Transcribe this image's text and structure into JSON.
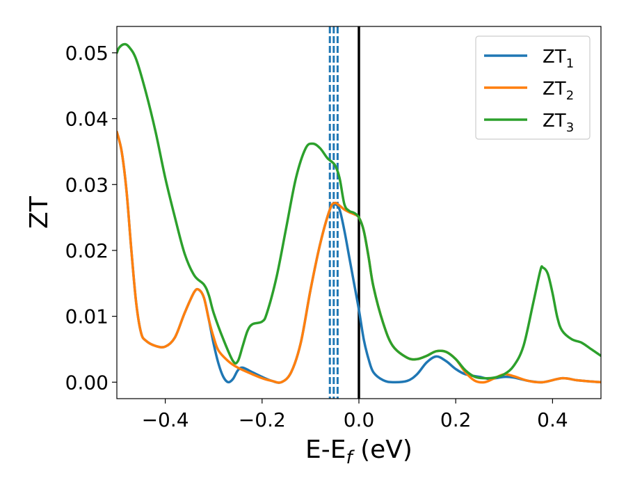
{
  "chart_data": {
    "type": "line",
    "title": "",
    "xlabel": {
      "main": "E-E",
      "sub": "f",
      "suffix": " (eV)"
    },
    "ylabel": "ZT",
    "xlim": [
      -0.5,
      0.5
    ],
    "ylim": [
      -0.0025,
      0.054
    ],
    "x_ticks": [
      -0.4,
      -0.2,
      0.0,
      0.2,
      0.4
    ],
    "x_tick_labels": [
      "−0.4",
      "−0.2",
      "0.0",
      "0.2",
      "0.4"
    ],
    "y_ticks": [
      0.0,
      0.01,
      0.02,
      0.03,
      0.04,
      0.05
    ],
    "y_tick_labels": [
      "0.00",
      "0.01",
      "0.02",
      "0.03",
      "0.04",
      "0.05"
    ],
    "grid": false,
    "legend_position": "top-right",
    "vertical_lines": [
      {
        "x": 0.0,
        "style": "solid",
        "color": "#000000"
      },
      {
        "x": -0.06,
        "style": "dashed",
        "color": "#1f77b4"
      },
      {
        "x": -0.052,
        "style": "dashed",
        "color": "#1f77b4"
      },
      {
        "x": -0.044,
        "style": "dashed",
        "color": "#1f77b4"
      }
    ],
    "series": [
      {
        "name": "ZT",
        "subscript": "1",
        "color": "#1f77b4",
        "points": [
          [
            -0.5,
            0.038
          ],
          [
            -0.49,
            0.035
          ],
          [
            -0.48,
            0.029
          ],
          [
            -0.47,
            0.02
          ],
          [
            -0.46,
            0.012
          ],
          [
            -0.45,
            0.0075
          ],
          [
            -0.44,
            0.0063
          ],
          [
            -0.42,
            0.0055
          ],
          [
            -0.4,
            0.0054
          ],
          [
            -0.38,
            0.0068
          ],
          [
            -0.36,
            0.0105
          ],
          [
            -0.34,
            0.0137
          ],
          [
            -0.33,
            0.014
          ],
          [
            -0.32,
            0.0128
          ],
          [
            -0.31,
            0.0095
          ],
          [
            -0.3,
            0.0058
          ],
          [
            -0.29,
            0.0028
          ],
          [
            -0.28,
            0.0008
          ],
          [
            -0.27,
            0.0
          ],
          [
            -0.26,
            0.0005
          ],
          [
            -0.25,
            0.0018
          ],
          [
            -0.24,
            0.0022
          ],
          [
            -0.22,
            0.0015
          ],
          [
            -0.2,
            0.0008
          ],
          [
            -0.18,
            0.0002
          ],
          [
            -0.16,
            0.0
          ],
          [
            -0.14,
            0.0015
          ],
          [
            -0.12,
            0.006
          ],
          [
            -0.1,
            0.014
          ],
          [
            -0.08,
            0.021
          ],
          [
            -0.06,
            0.0262
          ],
          [
            -0.05,
            0.027
          ],
          [
            -0.04,
            0.0262
          ],
          [
            -0.03,
            0.023
          ],
          [
            -0.02,
            0.019
          ],
          [
            -0.01,
            0.015
          ],
          [
            0.0,
            0.011
          ],
          [
            0.01,
            0.0065
          ],
          [
            0.02,
            0.0035
          ],
          [
            0.03,
            0.0015
          ],
          [
            0.05,
            0.0003
          ],
          [
            0.07,
            0.0
          ],
          [
            0.1,
            0.0002
          ],
          [
            0.12,
            0.0012
          ],
          [
            0.14,
            0.003
          ],
          [
            0.16,
            0.0039
          ],
          [
            0.18,
            0.0032
          ],
          [
            0.2,
            0.002
          ],
          [
            0.22,
            0.0012
          ],
          [
            0.25,
            0.0008
          ],
          [
            0.27,
            0.0005
          ],
          [
            0.3,
            0.0008
          ],
          [
            0.32,
            0.0007
          ],
          [
            0.35,
            0.0002
          ],
          [
            0.38,
            0.0
          ],
          [
            0.42,
            0.0006
          ],
          [
            0.45,
            0.0003
          ],
          [
            0.48,
            0.0001
          ],
          [
            0.5,
            0.0
          ]
        ]
      },
      {
        "name": "ZT",
        "subscript": "2",
        "color": "#ff7f0e",
        "points": [
          [
            -0.5,
            0.038
          ],
          [
            -0.49,
            0.035
          ],
          [
            -0.48,
            0.029
          ],
          [
            -0.47,
            0.02
          ],
          [
            -0.46,
            0.012
          ],
          [
            -0.45,
            0.0075
          ],
          [
            -0.44,
            0.0063
          ],
          [
            -0.42,
            0.0055
          ],
          [
            -0.4,
            0.0054
          ],
          [
            -0.38,
            0.0068
          ],
          [
            -0.36,
            0.0105
          ],
          [
            -0.34,
            0.0137
          ],
          [
            -0.33,
            0.014
          ],
          [
            -0.32,
            0.0128
          ],
          [
            -0.31,
            0.0095
          ],
          [
            -0.3,
            0.0068
          ],
          [
            -0.29,
            0.0048
          ],
          [
            -0.27,
            0.0032
          ],
          [
            -0.25,
            0.0022
          ],
          [
            -0.22,
            0.0012
          ],
          [
            -0.2,
            0.0006
          ],
          [
            -0.18,
            0.0002
          ],
          [
            -0.16,
            0.0
          ],
          [
            -0.14,
            0.0015
          ],
          [
            -0.12,
            0.006
          ],
          [
            -0.1,
            0.014
          ],
          [
            -0.08,
            0.021
          ],
          [
            -0.06,
            0.0262
          ],
          [
            -0.05,
            0.0272
          ],
          [
            -0.04,
            0.0268
          ],
          [
            -0.03,
            0.0262
          ],
          [
            -0.02,
            0.0258
          ],
          [
            -0.01,
            0.0255
          ],
          [
            0.0,
            0.025
          ],
          [
            0.01,
            0.023
          ],
          [
            0.02,
            0.019
          ],
          [
            0.03,
            0.0145
          ],
          [
            0.05,
            0.009
          ],
          [
            0.07,
            0.0055
          ],
          [
            0.1,
            0.0037
          ],
          [
            0.12,
            0.0035
          ],
          [
            0.14,
            0.004
          ],
          [
            0.16,
            0.0047
          ],
          [
            0.18,
            0.0046
          ],
          [
            0.2,
            0.0035
          ],
          [
            0.22,
            0.0015
          ],
          [
            0.24,
            0.0002
          ],
          [
            0.26,
            0.0
          ],
          [
            0.28,
            0.0006
          ],
          [
            0.3,
            0.0012
          ],
          [
            0.32,
            0.0009
          ],
          [
            0.35,
            0.0002
          ],
          [
            0.38,
            0.0
          ],
          [
            0.42,
            0.0006
          ],
          [
            0.45,
            0.0003
          ],
          [
            0.48,
            0.0001
          ],
          [
            0.5,
            0.0
          ]
        ]
      },
      {
        "name": "ZT",
        "subscript": "3",
        "color": "#2ca02c",
        "points": [
          [
            -0.5,
            0.05
          ],
          [
            -0.495,
            0.0508
          ],
          [
            -0.485,
            0.0513
          ],
          [
            -0.475,
            0.0509
          ],
          [
            -0.46,
            0.049
          ],
          [
            -0.44,
            0.044
          ],
          [
            -0.42,
            0.038
          ],
          [
            -0.4,
            0.031
          ],
          [
            -0.38,
            0.025
          ],
          [
            -0.36,
            0.0195
          ],
          [
            -0.34,
            0.0162
          ],
          [
            -0.32,
            0.0148
          ],
          [
            -0.31,
            0.0132
          ],
          [
            -0.3,
            0.0105
          ],
          [
            -0.28,
            0.0065
          ],
          [
            -0.26,
            0.0032
          ],
          [
            -0.25,
            0.0032
          ],
          [
            -0.24,
            0.0055
          ],
          [
            -0.23,
            0.0078
          ],
          [
            -0.22,
            0.0088
          ],
          [
            -0.2,
            0.0092
          ],
          [
            -0.19,
            0.0105
          ],
          [
            -0.17,
            0.016
          ],
          [
            -0.15,
            0.0235
          ],
          [
            -0.13,
            0.031
          ],
          [
            -0.11,
            0.0355
          ],
          [
            -0.095,
            0.0362
          ],
          [
            -0.08,
            0.0355
          ],
          [
            -0.065,
            0.034
          ],
          [
            -0.05,
            0.033
          ],
          [
            -0.04,
            0.031
          ],
          [
            -0.03,
            0.027
          ],
          [
            -0.02,
            0.026
          ],
          [
            -0.01,
            0.0257
          ],
          [
            0.0,
            0.025
          ],
          [
            0.01,
            0.023
          ],
          [
            0.02,
            0.019
          ],
          [
            0.03,
            0.0145
          ],
          [
            0.05,
            0.009
          ],
          [
            0.07,
            0.0055
          ],
          [
            0.1,
            0.0037
          ],
          [
            0.12,
            0.0035
          ],
          [
            0.14,
            0.004
          ],
          [
            0.16,
            0.0047
          ],
          [
            0.18,
            0.0046
          ],
          [
            0.2,
            0.0035
          ],
          [
            0.22,
            0.0018
          ],
          [
            0.24,
            0.0008
          ],
          [
            0.26,
            0.0006
          ],
          [
            0.28,
            0.0007
          ],
          [
            0.3,
            0.0012
          ],
          [
            0.32,
            0.0025
          ],
          [
            0.34,
            0.0055
          ],
          [
            0.36,
            0.012
          ],
          [
            0.375,
            0.017
          ],
          [
            0.38,
            0.0174
          ],
          [
            0.39,
            0.0165
          ],
          [
            0.4,
            0.0135
          ],
          [
            0.41,
            0.0098
          ],
          [
            0.42,
            0.0078
          ],
          [
            0.44,
            0.0065
          ],
          [
            0.46,
            0.006
          ],
          [
            0.48,
            0.005
          ],
          [
            0.5,
            0.004
          ]
        ]
      }
    ]
  }
}
